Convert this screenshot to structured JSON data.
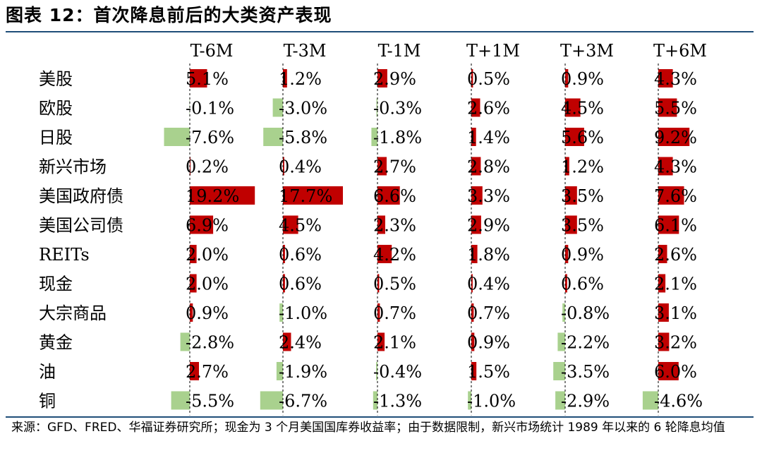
{
  "title": "图表 12：首次降息前后的大类资产表现",
  "source_note": "来源：GFD、FRED、华福证券研究所；现金为 3 个月美国国库券收益率；由于数据限制，新兴市场统计 1989 年以来的 6 轮降息均值",
  "colors": {
    "positive": "#c00000",
    "negative": "#a9d18e",
    "rule": "#1f4e79",
    "zero_line": "#000000"
  },
  "chart_data": {
    "type": "table",
    "columns": [
      "T-6M",
      "T-3M",
      "T-1M",
      "T+1M",
      "T+3M",
      "T+6M"
    ],
    "rows": [
      {
        "label": "美股",
        "values": [
          5.1,
          1.2,
          2.9,
          0.5,
          0.9,
          4.3
        ]
      },
      {
        "label": "欧股",
        "values": [
          -0.1,
          -3.0,
          -0.3,
          2.6,
          4.5,
          5.5
        ]
      },
      {
        "label": "日股",
        "values": [
          -7.6,
          -5.8,
          -1.8,
          1.4,
          5.6,
          9.2
        ]
      },
      {
        "label": "新兴市场",
        "values": [
          0.2,
          0.4,
          2.7,
          2.8,
          1.2,
          4.3
        ]
      },
      {
        "label": "美国政府债",
        "values": [
          19.2,
          17.7,
          6.6,
          3.3,
          3.5,
          7.6
        ]
      },
      {
        "label": "美国公司债",
        "values": [
          6.9,
          4.5,
          2.3,
          2.9,
          3.5,
          6.1
        ]
      },
      {
        "label": "REITs",
        "values": [
          2.0,
          0.6,
          4.2,
          1.8,
          0.9,
          2.6
        ]
      },
      {
        "label": "现金",
        "values": [
          2.0,
          0.6,
          0.5,
          0.4,
          0.6,
          2.1
        ]
      },
      {
        "label": "大宗商品",
        "values": [
          0.9,
          -1.0,
          0.7,
          0.7,
          -0.8,
          3.1
        ]
      },
      {
        "label": "黄金",
        "values": [
          -2.8,
          2.4,
          2.1,
          0.9,
          -2.2,
          3.2
        ]
      },
      {
        "label": "油",
        "values": [
          2.7,
          -1.9,
          -0.4,
          1.5,
          -3.5,
          6.0
        ]
      },
      {
        "label": "铜",
        "values": [
          -5.5,
          -6.7,
          -1.3,
          -1.0,
          -2.9,
          -4.6
        ]
      }
    ],
    "value_suffix": "%"
  }
}
